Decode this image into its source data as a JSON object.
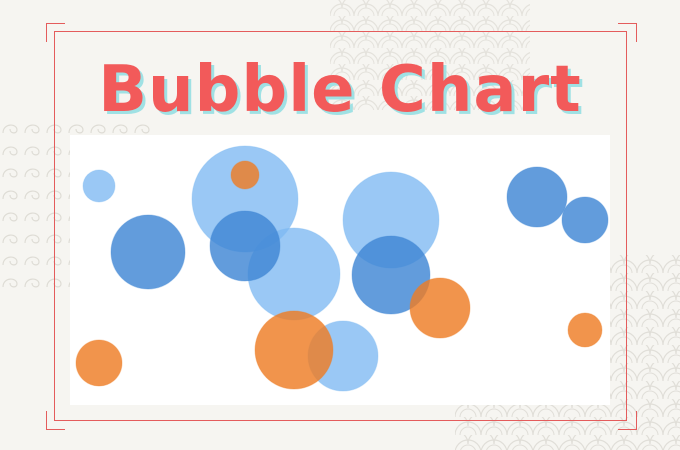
{
  "title": "Bubble Chart",
  "colors": {
    "background": "#f6f5f1",
    "frame": "#e45c5c",
    "title": "#f25a5a",
    "title_shadow": "#9fe1e4",
    "light_blue": "#7db9f2",
    "dark_blue": "#3f86d4",
    "orange": "#ee7d25"
  },
  "chart_data": {
    "type": "scatter",
    "subtype": "bubble",
    "axes_visible": false,
    "grid": false,
    "legend": "none",
    "xlim": [
      0,
      540
    ],
    "ylim": [
      0,
      270
    ],
    "series": [
      {
        "color": "light_blue",
        "points": [
          {
            "x": 29,
            "y": 219,
            "r": 16
          },
          {
            "x": 175,
            "y": 206,
            "r": 53
          },
          {
            "x": 224,
            "y": 131,
            "r": 46
          },
          {
            "x": 321,
            "y": 185,
            "r": 48
          },
          {
            "x": 273,
            "y": 49,
            "r": 35
          }
        ]
      },
      {
        "color": "dark_blue",
        "points": [
          {
            "x": 78,
            "y": 153,
            "r": 37
          },
          {
            "x": 175,
            "y": 159,
            "r": 35
          },
          {
            "x": 321,
            "y": 130,
            "r": 39
          },
          {
            "x": 467,
            "y": 208,
            "r": 30
          },
          {
            "x": 515,
            "y": 185,
            "r": 23
          }
        ]
      },
      {
        "color": "orange",
        "points": [
          {
            "x": 175,
            "y": 230,
            "r": 14
          },
          {
            "x": 370,
            "y": 97,
            "r": 30
          },
          {
            "x": 224,
            "y": 55,
            "r": 39
          },
          {
            "x": 29,
            "y": 42,
            "r": 23
          },
          {
            "x": 515,
            "y": 75,
            "r": 17
          }
        ]
      }
    ]
  }
}
